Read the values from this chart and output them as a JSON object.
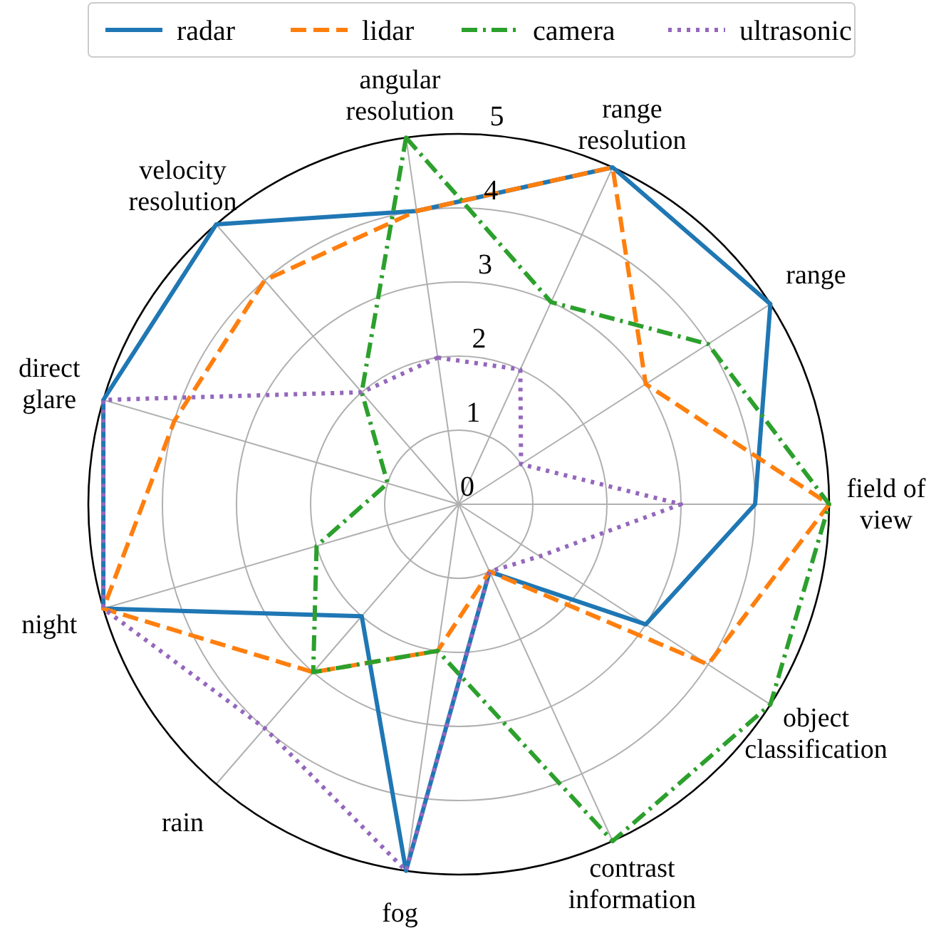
{
  "chart_data": {
    "type": "radar",
    "categories": [
      "angular\nresolution",
      "range\nresolution",
      "range",
      "field of\nview",
      "object\nclassification",
      "contrast\ninformation",
      "fog",
      "rain",
      "night",
      "direct\nglare",
      "velocity\nresolution"
    ],
    "series": [
      {
        "name": "radar",
        "color": "#1f77b4",
        "line_style": "solid",
        "values": [
          4,
          5,
          5,
          4,
          3,
          1,
          5,
          2,
          5,
          5,
          5
        ]
      },
      {
        "name": "lidar",
        "color": "#ff7f0e",
        "line_style": "dashed",
        "values": [
          4,
          5,
          3,
          5,
          4,
          1,
          2,
          3,
          5,
          4,
          4
        ]
      },
      {
        "name": "camera",
        "color": "#2ca02c",
        "line_style": "dashdot",
        "values": [
          5,
          3,
          4,
          5,
          5,
          5,
          2,
          3,
          2,
          1,
          2
        ]
      },
      {
        "name": "ultrasonic",
        "color": "#9467bd",
        "line_style": "dotted",
        "values": [
          2,
          2,
          1,
          3,
          1.3,
          1,
          5,
          4,
          5,
          5,
          2
        ]
      }
    ],
    "ylim": [
      0,
      5
    ],
    "yticks": [
      0,
      1,
      2,
      3,
      4,
      5
    ],
    "grid": true,
    "legend": "top"
  }
}
